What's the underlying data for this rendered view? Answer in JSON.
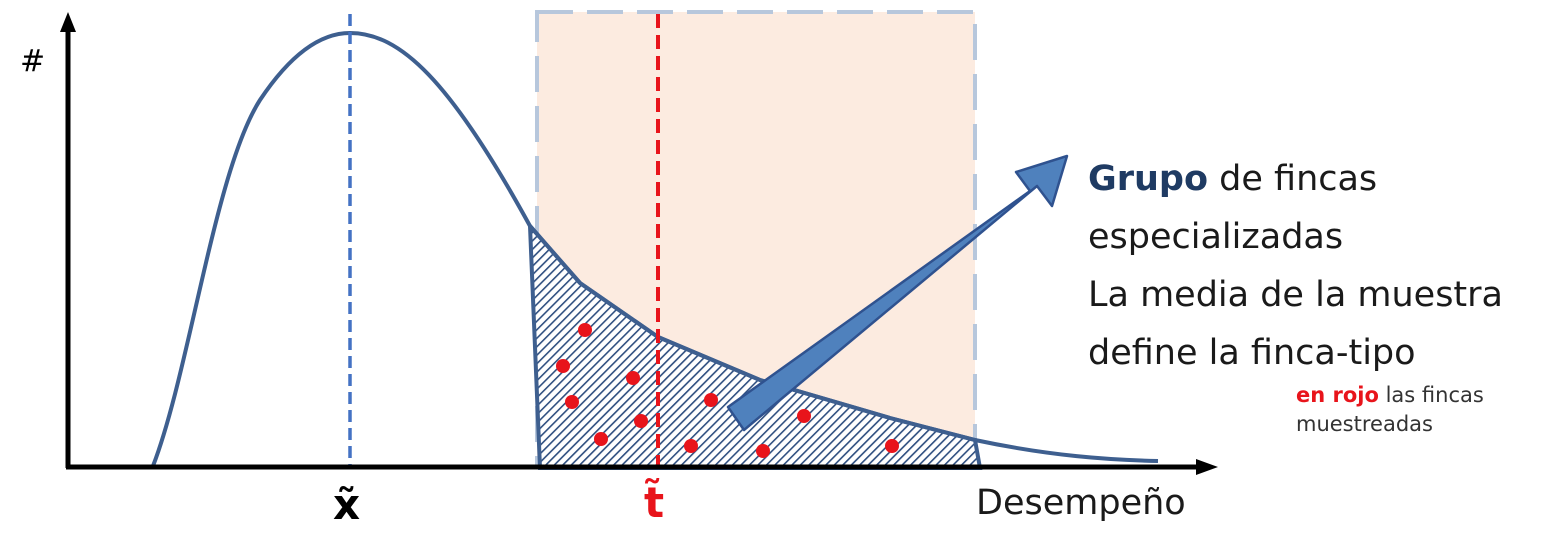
{
  "y_axis": {
    "label": "#"
  },
  "x_axis": {
    "label": "Desempeño"
  },
  "markers": {
    "median": {
      "symbol": "x̃",
      "color": "#000000"
    },
    "typical": {
      "symbol": "t̃",
      "color": "#e8141b"
    }
  },
  "group_box": {
    "title_highlight": "Grupo",
    "title_rest": " de fincas",
    "line2": "especializadas",
    "line3": "La media de la muestra",
    "line4": "define la finca-tipo"
  },
  "note": {
    "highlight": "en rojo",
    "rest": " las fincas",
    "line2": "muestreadas"
  },
  "colors": {
    "curve": "#3e5f8f",
    "median_line": "#4472c4",
    "typical_line": "#e8141b",
    "box_fill": "#fcebe0",
    "box_border": "#b7c7dc",
    "arrow": "#4f81bd",
    "sample_dot": "#e8141b"
  }
}
